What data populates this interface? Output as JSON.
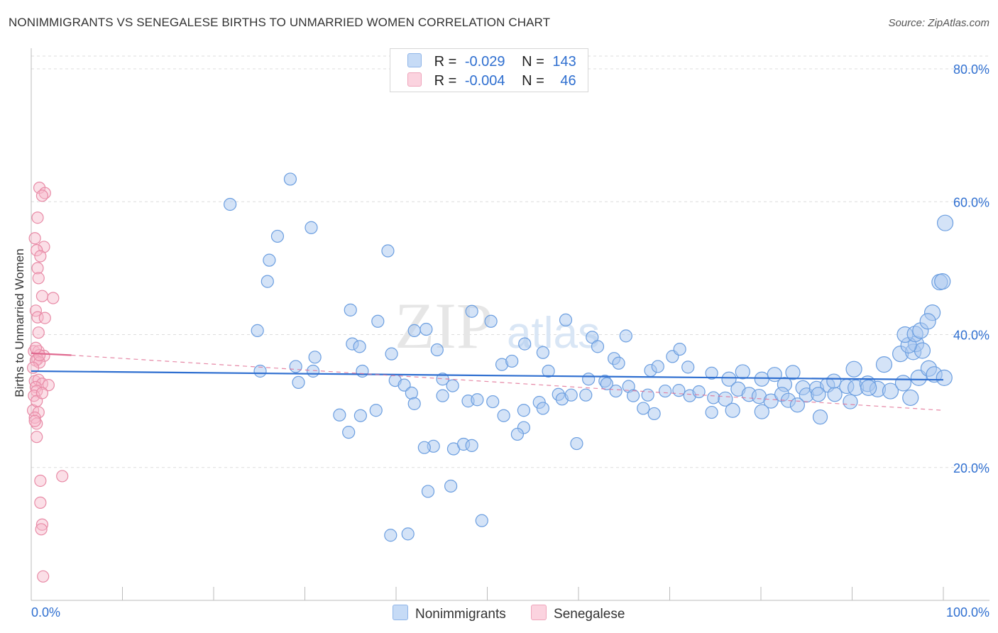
{
  "title": "NONIMMIGRANTS VS SENEGALESE BIRTHS TO UNMARRIED WOMEN CORRELATION CHART",
  "source": "Source: ZipAtlas.com",
  "watermark": {
    "zip": "ZIP",
    "atlas": "atlas"
  },
  "legend": {
    "r_label": "R =",
    "n_label": "N =",
    "rows": [
      {
        "name": "Nonimmigrants",
        "r": "-0.029",
        "n": "143",
        "color": "#a9c8f0"
      },
      {
        "name": "Senegalese",
        "r": "-0.004",
        "n": "46",
        "color": "#f6b7c9"
      }
    ]
  },
  "colors": {
    "blue_fill": "#a9c8f0",
    "blue_stroke": "#6b9ee0",
    "blue_line": "#2f6fd0",
    "pink_fill": "#f6b7c9",
    "pink_stroke": "#e88aa6",
    "pink_line": "#e06a90",
    "tick_label": "#2f6fd0",
    "grid": "#dddddd"
  },
  "chart_data": {
    "type": "scatter",
    "title": "NONIMMIGRANTS VS SENEGALESE BIRTHS TO UNMARRIED WOMEN CORRELATION CHART",
    "xlabel": "",
    "ylabel": "Births to Unmarried Women",
    "xlim": [
      0,
      100
    ],
    "ylim": [
      0,
      83
    ],
    "x_tick_labels": [
      {
        "value": 0,
        "label": "0.0%"
      },
      {
        "value": 100,
        "label": "100.0%"
      }
    ],
    "y_tick_labels": [
      {
        "value": 20,
        "label": "20.0%"
      },
      {
        "value": 40,
        "label": "40.0%"
      },
      {
        "value": 60,
        "label": "60.0%"
      },
      {
        "value": 80,
        "label": "80.0%"
      }
    ],
    "series": [
      {
        "name": "Nonimmigrants",
        "trend": {
          "x": [
            0,
            100
          ],
          "y": [
            34.5,
            33.2
          ]
        },
        "points": [
          [
            21.8,
            59.6
          ],
          [
            28.4,
            63.4
          ],
          [
            27.0,
            54.8
          ],
          [
            30.7,
            56.1
          ],
          [
            26.1,
            51.2
          ],
          [
            39.1,
            52.6
          ],
          [
            25.9,
            48.0
          ],
          [
            35.0,
            43.7
          ],
          [
            24.8,
            40.6
          ],
          [
            38.0,
            42.0
          ],
          [
            48.3,
            43.5
          ],
          [
            50.4,
            42.0
          ],
          [
            43.3,
            40.8
          ],
          [
            42.0,
            40.6
          ],
          [
            35.2,
            38.6
          ],
          [
            36.0,
            38.2
          ],
          [
            31.1,
            36.6
          ],
          [
            39.5,
            37.1
          ],
          [
            44.5,
            37.7
          ],
          [
            58.6,
            42.2
          ],
          [
            54.1,
            38.6
          ],
          [
            29.0,
            35.2
          ],
          [
            25.1,
            34.5
          ],
          [
            36.3,
            34.5
          ],
          [
            29.3,
            32.8
          ],
          [
            39.9,
            33.1
          ],
          [
            45.1,
            33.3
          ],
          [
            51.6,
            35.5
          ],
          [
            52.7,
            36.0
          ],
          [
            56.1,
            37.3
          ],
          [
            56.7,
            34.5
          ],
          [
            61.5,
            39.6
          ],
          [
            62.1,
            38.2
          ],
          [
            65.2,
            39.8
          ],
          [
            63.9,
            36.4
          ],
          [
            61.1,
            33.3
          ],
          [
            62.9,
            33.0
          ],
          [
            64.4,
            35.7
          ],
          [
            67.9,
            34.6
          ],
          [
            68.7,
            35.2
          ],
          [
            70.3,
            36.7
          ],
          [
            71.1,
            37.8
          ],
          [
            72.0,
            35.1
          ],
          [
            74.6,
            34.2
          ],
          [
            76.5,
            33.3
          ],
          [
            78.0,
            34.4
          ],
          [
            80.1,
            33.3
          ],
          [
            81.5,
            34.0
          ],
          [
            82.6,
            32.5
          ],
          [
            83.5,
            34.3
          ],
          [
            40.9,
            32.4
          ],
          [
            41.7,
            31.2
          ],
          [
            42.0,
            29.6
          ],
          [
            33.8,
            27.9
          ],
          [
            37.8,
            28.6
          ],
          [
            45.1,
            30.8
          ],
          [
            46.2,
            32.3
          ],
          [
            47.9,
            30.0
          ],
          [
            48.9,
            30.2
          ],
          [
            50.6,
            29.9
          ],
          [
            51.8,
            27.8
          ],
          [
            54.0,
            28.6
          ],
          [
            55.7,
            29.8
          ],
          [
            57.8,
            31.0
          ],
          [
            58.2,
            30.3
          ],
          [
            59.2,
            30.9
          ],
          [
            60.8,
            30.9
          ],
          [
            63.1,
            32.6
          ],
          [
            64.1,
            31.5
          ],
          [
            65.5,
            32.2
          ],
          [
            66.0,
            30.8
          ],
          [
            67.6,
            30.9
          ],
          [
            69.5,
            31.5
          ],
          [
            71.0,
            31.6
          ],
          [
            72.2,
            30.8
          ],
          [
            73.2,
            31.4
          ],
          [
            74.8,
            30.5
          ],
          [
            76.1,
            30.3
          ],
          [
            77.5,
            31.8
          ],
          [
            78.7,
            31.0
          ],
          [
            79.8,
            30.7
          ],
          [
            81.1,
            30.0
          ],
          [
            82.3,
            31.0
          ],
          [
            83.0,
            30.1
          ],
          [
            84.6,
            32.0
          ],
          [
            85.0,
            30.9
          ],
          [
            86.1,
            31.9
          ],
          [
            87.3,
            32.4
          ],
          [
            88.1,
            31.0
          ],
          [
            89.4,
            32.2
          ],
          [
            90.4,
            32.0
          ],
          [
            91.7,
            32.6
          ],
          [
            92.8,
            31.8
          ],
          [
            94.2,
            31.5
          ],
          [
            95.6,
            32.7
          ],
          [
            96.4,
            30.5
          ],
          [
            97.3,
            33.5
          ],
          [
            98.4,
            34.9
          ],
          [
            99.0,
            34.0
          ],
          [
            100.1,
            33.5
          ],
          [
            88.0,
            33.0
          ],
          [
            90.2,
            34.8
          ],
          [
            93.5,
            35.5
          ],
          [
            95.3,
            37.1
          ],
          [
            96.7,
            37.4
          ],
          [
            97.0,
            38.6
          ],
          [
            97.7,
            37.6
          ],
          [
            96.2,
            38.4
          ],
          [
            95.8,
            40.0
          ],
          [
            96.9,
            40.1
          ],
          [
            97.5,
            40.6
          ],
          [
            98.8,
            43.3
          ],
          [
            98.3,
            42.0
          ],
          [
            99.6,
            47.9
          ],
          [
            99.9,
            48.0
          ],
          [
            100.2,
            56.8
          ],
          [
            89.8,
            29.9
          ],
          [
            84.0,
            29.4
          ],
          [
            86.5,
            27.6
          ],
          [
            80.1,
            28.4
          ],
          [
            76.9,
            28.6
          ],
          [
            74.6,
            28.3
          ],
          [
            68.3,
            28.1
          ],
          [
            67.1,
            28.9
          ],
          [
            56.1,
            28.9
          ],
          [
            54.0,
            26.0
          ],
          [
            53.3,
            25.0
          ],
          [
            44.1,
            23.2
          ],
          [
            46.3,
            22.8
          ],
          [
            47.4,
            23.5
          ],
          [
            48.3,
            23.3
          ],
          [
            59.8,
            23.6
          ],
          [
            43.1,
            23.0
          ],
          [
            34.8,
            25.3
          ],
          [
            36.1,
            27.8
          ],
          [
            43.5,
            16.4
          ],
          [
            46.0,
            17.2
          ],
          [
            39.4,
            9.8
          ],
          [
            41.3,
            10.0
          ],
          [
            49.4,
            12.0
          ],
          [
            86.3,
            31.0
          ],
          [
            91.8,
            32.0
          ],
          [
            30.9,
            34.5
          ]
        ]
      },
      {
        "name": "Senegalese",
        "trend": {
          "x": [
            0,
            4.4
          ],
          "y": [
            37.2,
            36.9
          ]
        },
        "trend_dashed": {
          "x": [
            4.4,
            100
          ],
          "y": [
            36.9,
            28.6
          ]
        },
        "points": [
          [
            0.9,
            62.1
          ],
          [
            1.5,
            61.3
          ],
          [
            1.2,
            60.9
          ],
          [
            0.7,
            57.6
          ],
          [
            0.4,
            54.5
          ],
          [
            1.4,
            53.2
          ],
          [
            0.6,
            52.7
          ],
          [
            1.0,
            51.8
          ],
          [
            0.7,
            50.0
          ],
          [
            0.8,
            48.5
          ],
          [
            1.2,
            45.8
          ],
          [
            2.4,
            45.5
          ],
          [
            0.5,
            43.6
          ],
          [
            0.7,
            42.6
          ],
          [
            1.5,
            42.5
          ],
          [
            0.8,
            40.3
          ],
          [
            0.3,
            37.5
          ],
          [
            0.8,
            37.5
          ],
          [
            1.4,
            36.8
          ],
          [
            0.7,
            36.3
          ],
          [
            0.5,
            36.1
          ],
          [
            0.9,
            35.8
          ],
          [
            0.2,
            35.0
          ],
          [
            0.4,
            33.0
          ],
          [
            0.8,
            33.2
          ],
          [
            1.2,
            32.6
          ],
          [
            1.9,
            32.4
          ],
          [
            0.5,
            32.1
          ],
          [
            0.6,
            31.5
          ],
          [
            0.3,
            30.8
          ],
          [
            0.2,
            28.6
          ],
          [
            0.8,
            28.3
          ],
          [
            0.4,
            27.5
          ],
          [
            0.6,
            26.6
          ],
          [
            0.6,
            24.6
          ],
          [
            3.4,
            18.7
          ],
          [
            1.0,
            18.0
          ],
          [
            1.0,
            14.7
          ],
          [
            1.2,
            11.4
          ],
          [
            1.1,
            10.7
          ],
          [
            1.3,
            3.6
          ],
          [
            0.4,
            27.0
          ],
          [
            0.6,
            30.0
          ],
          [
            1.2,
            31.2
          ],
          [
            0.9,
            36.9
          ],
          [
            0.5,
            38.0
          ]
        ]
      }
    ]
  }
}
